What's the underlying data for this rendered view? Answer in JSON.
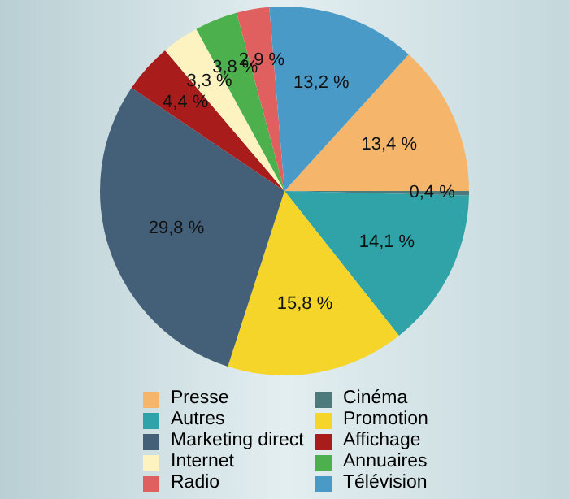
{
  "chart_data": {
    "type": "pie",
    "categories": [
      "Presse",
      "Cinéma",
      "Autres",
      "Promotion",
      "Marketing direct",
      "Affichage",
      "Internet",
      "Annuaires",
      "Radio",
      "Télévision"
    ],
    "values": [
      13.4,
      0.4,
      14.1,
      15.8,
      29.8,
      4.4,
      3.3,
      3.8,
      2.9,
      13.2
    ],
    "colors": [
      "#f5b66b",
      "#4d7a7a",
      "#2fa3a8",
      "#f5d52a",
      "#446078",
      "#a81c1c",
      "#fdf3c0",
      "#4cb04c",
      "#e06060",
      "#4a9ac8"
    ],
    "value_labels": [
      "13,4 %",
      "0,4 %",
      "14,1 %",
      "15,8 %",
      "29,8 %",
      "4,4 %",
      "3,3 %",
      "3,8 %",
      "2,9 %",
      "13,2 %"
    ],
    "legend": "bottom"
  }
}
